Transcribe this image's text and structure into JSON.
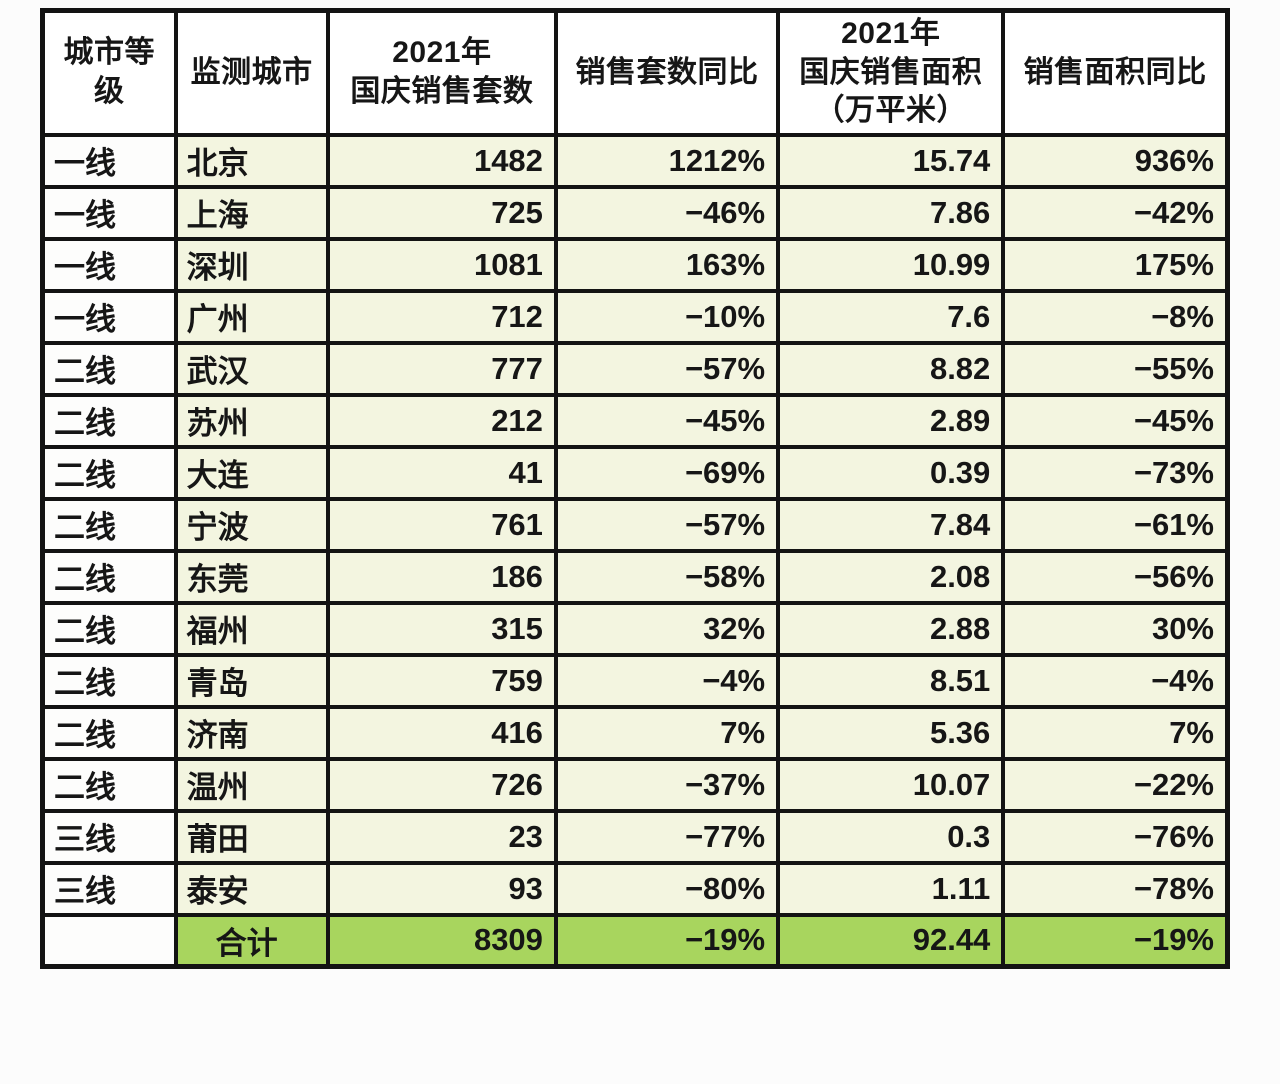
{
  "colors": {
    "border": "#131313",
    "head_bg": "#ffffff",
    "tier_bg": "#fdfdfc",
    "cell_bg": "#f3f5e0",
    "total_bg": "#a8d55e",
    "text": "#161616",
    "page_bg": "#fcfcfc"
  },
  "chart_data": {
    "type": "table",
    "columns": [
      "城市等\n级",
      "监测城市",
      "2021年\n国庆销售套数",
      "销售套数同比",
      "2021年\n国庆销售面积\n（万平米）",
      "销售面积同比"
    ],
    "column_semantics": [
      "city-tier",
      "monitored-city",
      "units-sold-2021-national-day",
      "units-sold-yoy",
      "area-sold-2021-national-day-10k-sqm",
      "area-sold-yoy"
    ],
    "rows": [
      [
        "一线",
        "北京",
        "1482",
        "1212%",
        "15.74",
        "936%"
      ],
      [
        "一线",
        "上海",
        "725",
        "−46%",
        "7.86",
        "−42%"
      ],
      [
        "一线",
        "深圳",
        "1081",
        "163%",
        "10.99",
        "175%"
      ],
      [
        "一线",
        "广州",
        "712",
        "−10%",
        "7.6",
        "−8%"
      ],
      [
        "二线",
        "武汉",
        "777",
        "−57%",
        "8.82",
        "−55%"
      ],
      [
        "二线",
        "苏州",
        "212",
        "−45%",
        "2.89",
        "−45%"
      ],
      [
        "二线",
        "大连",
        "41",
        "−69%",
        "0.39",
        "−73%"
      ],
      [
        "二线",
        "宁波",
        "761",
        "−57%",
        "7.84",
        "−61%"
      ],
      [
        "二线",
        "东莞",
        "186",
        "−58%",
        "2.08",
        "−56%"
      ],
      [
        "二线",
        "福州",
        "315",
        "32%",
        "2.88",
        "30%"
      ],
      [
        "二线",
        "青岛",
        "759",
        "−4%",
        "8.51",
        "−4%"
      ],
      [
        "二线",
        "济南",
        "416",
        "7%",
        "5.36",
        "7%"
      ],
      [
        "二线",
        "温州",
        "726",
        "−37%",
        "10.07",
        "−22%"
      ],
      [
        "三线",
        "莆田",
        "23",
        "−77%",
        "0.3",
        "−76%"
      ],
      [
        "三线",
        "泰安",
        "93",
        "−80%",
        "1.11",
        "−78%"
      ]
    ],
    "total_row": [
      "",
      "合计",
      "8309",
      "−19%",
      "92.44",
      "−19%"
    ]
  }
}
